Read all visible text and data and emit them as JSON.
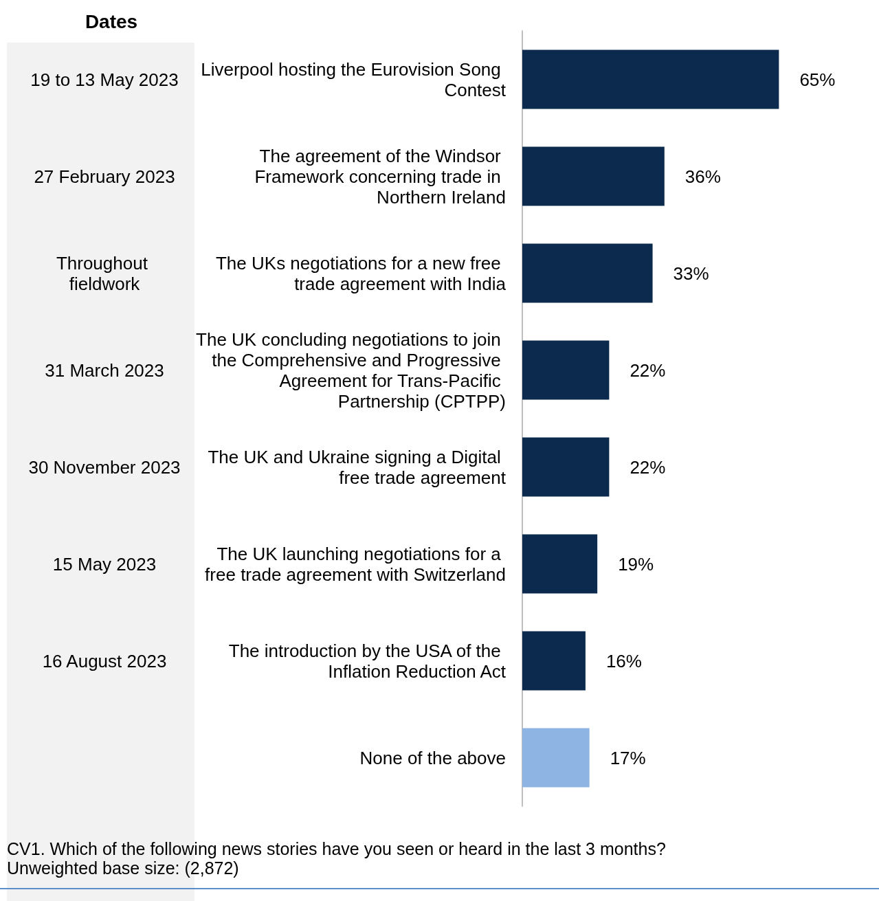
{
  "chart_data": {
    "type": "bar",
    "orientation": "horizontal",
    "title": "Dates",
    "categories": [
      "Liverpool hosting the Eurovision Song Contest",
      "The agreement of the Windsor Framework concerning trade in Northern Ireland",
      "The UKs negotiations for a new free trade agreement with India",
      "The UK concluding negotiations to join the Comprehensive and Progressive Agreement for Trans-Pacific Partnership (CPTPP)",
      "The UK and Ukraine signing a Digital free trade agreement",
      "The UK launching negotiations for a free trade agreement with Switzerland",
      "The introduction by the USA of the Inflation Reduction Act",
      "None of the above"
    ],
    "values": [
      65,
      36,
      33,
      22,
      22,
      19,
      16,
      17
    ],
    "colors": [
      "#0c2a4d",
      "#0c2a4d",
      "#0c2a4d",
      "#0c2a4d",
      "#0c2a4d",
      "#0c2a4d",
      "#0c2a4d",
      "#8db4e2"
    ],
    "value_labels": [
      "65%",
      "36%",
      "33%",
      "22%",
      "22%",
      "19%",
      "16%",
      "17%"
    ],
    "tick_labels": "y",
    "grid": false,
    "annotations": [
      "19 to 13 May 2023",
      "27 February 2023",
      "Throughout fieldwork",
      "31 March 2023",
      "30 November 2023",
      "15 May 2023",
      "16 August 2023",
      "CV1. Which of the following news stories have you seen or heard in the last 3 months?",
      "Unweighted base size: (2,872)"
    ]
  }
}
